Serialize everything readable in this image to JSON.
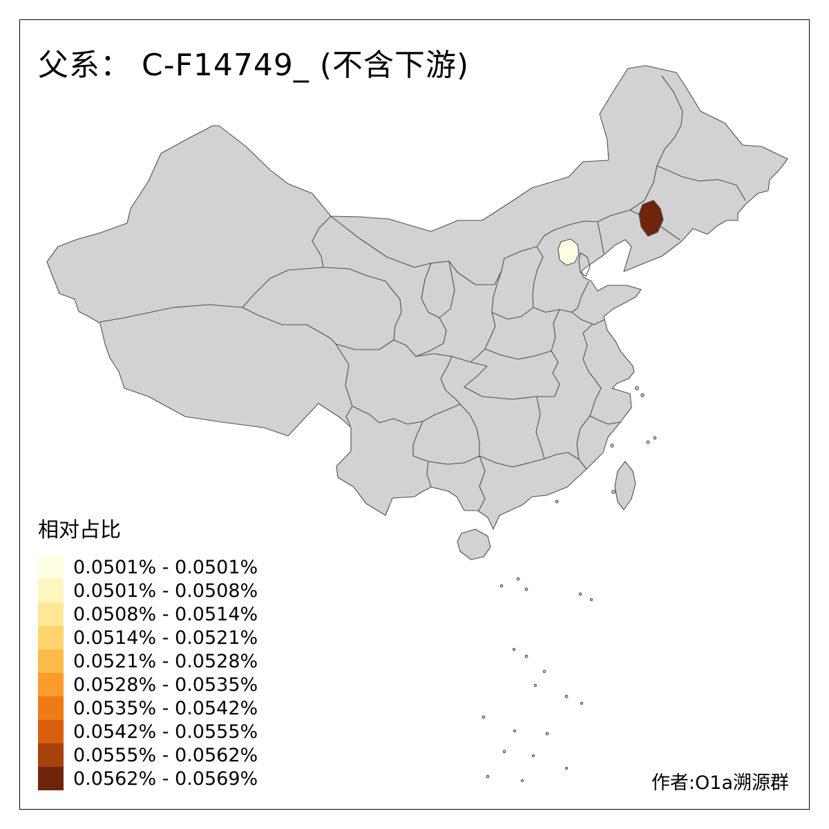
{
  "title": "父系： C-F14749_ (不含下游)",
  "legend": {
    "title": "相对占比",
    "classes": [
      {
        "label": "0.0501% - 0.0501%",
        "color": "#FFFFE3"
      },
      {
        "label": "0.0501% - 0.0508%",
        "color": "#FFF6BF"
      },
      {
        "label": "0.0508% - 0.0514%",
        "color": "#FEE897"
      },
      {
        "label": "0.0514% - 0.0521%",
        "color": "#FED46E"
      },
      {
        "label": "0.0521% - 0.0528%",
        "color": "#FDBB49"
      },
      {
        "label": "0.0528% - 0.0535%",
        "color": "#F99C2C"
      },
      {
        "label": "0.0535% - 0.0542%",
        "color": "#EE7B18"
      },
      {
        "label": "0.0542% - 0.0555%",
        "color": "#D85F0E"
      },
      {
        "label": "0.0555% - 0.0562%",
        "color": "#A8410B"
      },
      {
        "label": "0.0562% - 0.0569%",
        "color": "#6E250C"
      }
    ]
  },
  "map": {
    "land_fill": "#D2D2D2",
    "border_color": "#4D4D4D",
    "highlighted_regions": [
      {
        "name": "beijing",
        "class_label": "0.0501% - 0.0501%",
        "color": "#FFFFE3"
      },
      {
        "name": "jilin-west",
        "class_label": "0.0562% - 0.0569%",
        "color": "#6E250C"
      }
    ]
  },
  "credit": "作者:O1a溯源群"
}
